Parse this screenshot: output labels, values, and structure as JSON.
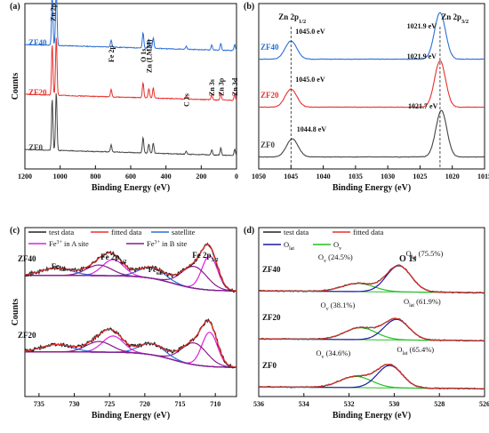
{
  "colors": {
    "black": "#222222",
    "red": "#e8312c",
    "blue": "#2a6fd6",
    "magenta": "#e020e0",
    "purple": "#8a1a8a",
    "green": "#22c122",
    "navy": "#1a1a9e"
  },
  "chart_data": [
    {
      "panel": "(a)",
      "type": "line",
      "xlabel": "Binding Energy (eV)",
      "ylabel": "Counts",
      "xlim": [
        1200,
        0
      ],
      "x_reversed": true,
      "xticks": [
        1200,
        1000,
        800,
        600,
        400,
        200,
        0
      ],
      "series": [
        {
          "name": "ZF40",
          "color": "#2a6fd6",
          "offset": 2.0
        },
        {
          "name": "ZF20",
          "color": "#e8312c",
          "offset": 1.0
        },
        {
          "name": "ZF0",
          "color": "#444444",
          "offset": 0.0
        }
      ],
      "peaks": [
        {
          "x": 1045,
          "h": 1.0
        },
        {
          "x": 1022,
          "h": 1.15
        },
        {
          "x": 711,
          "h": 0.14
        },
        {
          "x": 530,
          "h": 0.3
        },
        {
          "x": 497,
          "h": 0.18
        },
        {
          "x": 472,
          "h": 0.2
        },
        {
          "x": 285,
          "h": 0.06
        },
        {
          "x": 140,
          "h": 0.1
        },
        {
          "x": 89,
          "h": 0.14
        },
        {
          "x": 10,
          "h": 0.12
        }
      ],
      "annotations": [
        {
          "text": "Zn 2p",
          "x": 1040
        },
        {
          "text": "Fe 2p",
          "x": 711
        },
        {
          "text": "O 1s",
          "x": 530
        },
        {
          "text": "Zn (LMM)",
          "x": 497
        },
        {
          "text": "C 1s",
          "x": 285
        },
        {
          "text": "Zn 3s",
          "x": 140
        },
        {
          "text": "Zn 3p",
          "x": 89
        },
        {
          "text": "Zn 3d",
          "x": 10
        }
      ]
    },
    {
      "panel": "(b)",
      "type": "line",
      "xlabel": "Binding Energy (eV)",
      "ylabel": "",
      "xlim": [
        1050,
        1015
      ],
      "x_reversed": true,
      "xticks": [
        1050,
        1045,
        1040,
        1035,
        1030,
        1025,
        1020,
        1015
      ],
      "series": [
        {
          "name": "ZF40",
          "color": "#2a6fd6",
          "peak1": 1045.0,
          "peak2": 1021.9,
          "peak1_label": "1045.0 eV",
          "peak2_label": "1021.9 eV"
        },
        {
          "name": "ZF20",
          "color": "#e8312c",
          "peak1": 1045.0,
          "peak2": 1021.9,
          "peak1_label": "1045.0 eV",
          "peak2_label": "1021.9 eV"
        },
        {
          "name": "ZF0",
          "color": "#444444",
          "peak1": 1044.8,
          "peak2": 1021.7,
          "peak1_label": "1044.8 eV",
          "peak2_label": "1021.7 eV"
        }
      ],
      "annotations": [
        {
          "text": "Zn 2p",
          "sub": "1/2",
          "x": 1045
        },
        {
          "text": "Zn 2p",
          "sub": "3/2",
          "x": 1022
        }
      ]
    },
    {
      "panel": "(c)",
      "type": "line",
      "xlabel": "Binding Energy (eV)",
      "ylabel": "Counts",
      "xlim": [
        737,
        707
      ],
      "x_reversed": true,
      "xticks": [
        735,
        730,
        725,
        720,
        715,
        710
      ],
      "legend": [
        {
          "name": "test data",
          "color": "#222222"
        },
        {
          "name": "fitted data",
          "color": "#e8312c"
        },
        {
          "name": "satellite",
          "color": "#2a6fd6"
        },
        {
          "name": "Fe",
          "sup": "3+",
          "rest": " in A site",
          "color": "#e020e0"
        },
        {
          "name": "Fe",
          "sup": "3+",
          "rest": " in B site",
          "color": "#8a1a8a"
        }
      ],
      "samples": [
        "ZF40",
        "ZF20"
      ],
      "components": [
        {
          "kind": "A",
          "x": 710.8,
          "h": 0.55,
          "w": 1.1
        },
        {
          "kind": "B",
          "x": 713.0,
          "h": 0.35,
          "w": 1.8
        },
        {
          "kind": "sat",
          "x": 719.0,
          "h": 0.18,
          "w": 1.8
        },
        {
          "kind": "A",
          "x": 724.5,
          "h": 0.26,
          "w": 1.5
        },
        {
          "kind": "B",
          "x": 726.5,
          "h": 0.17,
          "w": 1.8
        },
        {
          "kind": "sat",
          "x": 732.5,
          "h": 0.12,
          "w": 2.2
        }
      ],
      "annotations": [
        {
          "text": "Fe",
          "sub": "sat",
          "x": 732.5
        },
        {
          "text": "Fe 2p",
          "sub": "1/2",
          "x": 724.5
        },
        {
          "text": "Fe",
          "sub": "sat",
          "x": 719
        },
        {
          "text": "Fe 2p",
          "sub": "3/2",
          "x": 711
        }
      ]
    },
    {
      "panel": "(d)",
      "type": "line",
      "xlabel": "Binding Energy (eV)",
      "ylabel": "",
      "xlim": [
        536,
        526
      ],
      "x_reversed": true,
      "xticks": [
        536,
        534,
        532,
        530,
        528,
        526
      ],
      "legend": [
        {
          "name": "test data",
          "color": "#222222"
        },
        {
          "name": "fitted data",
          "color": "#e8312c"
        },
        {
          "name": "O",
          "sub": "lat",
          "color": "#1a1a9e"
        },
        {
          "name": "O",
          "sub": "v",
          "color": "#22c122"
        }
      ],
      "title": "O 1s",
      "series": [
        {
          "name": "ZF40",
          "ov_pct": "(24.5%)",
          "olat_pct": "(75.5%)",
          "ov_x": 531.6,
          "olat_x": 529.8,
          "ov_h": 0.22,
          "olat_h": 0.7
        },
        {
          "name": "ZF20",
          "ov_pct": "(38.1%)",
          "olat_pct": "(61.9%)",
          "ov_x": 531.5,
          "olat_x": 529.9,
          "ov_h": 0.32,
          "olat_h": 0.55
        },
        {
          "name": "ZF0",
          "ov_pct": "(34.6%)",
          "olat_pct": "(65.4%)",
          "ov_x": 531.7,
          "olat_x": 530.2,
          "ov_h": 0.3,
          "olat_h": 0.6
        }
      ]
    }
  ]
}
